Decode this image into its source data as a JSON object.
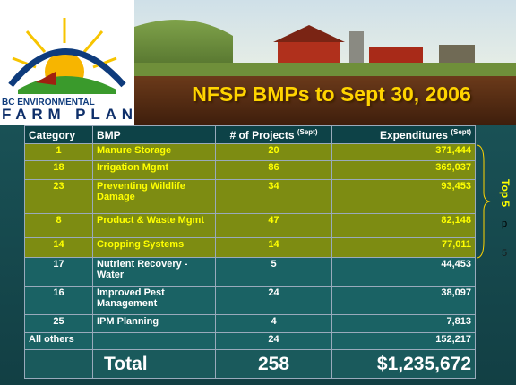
{
  "logo": {
    "line1": "BC ENVIRONMENTAL",
    "line2": "FARM PLAN"
  },
  "header": {
    "title": "NFSP BMPs to Sept 30, 2006"
  },
  "table": {
    "columns": [
      {
        "label": "Category"
      },
      {
        "label": "BMP"
      },
      {
        "label": "# of Projects",
        "note": "(Sept)"
      },
      {
        "label": "Expenditures",
        "note": "(Sept)"
      }
    ],
    "rows": [
      {
        "category": "1",
        "bmp": "Manure Storage",
        "projects": "20",
        "expenditures": "371,444",
        "highlight": true
      },
      {
        "category": "18",
        "bmp": "Irrigation Mgmt",
        "projects": "86",
        "expenditures": "369,037",
        "highlight": true
      },
      {
        "category": "23",
        "bmp": "Preventing Wildlife Damage",
        "projects": "34",
        "expenditures": "93,453",
        "highlight": true
      },
      {
        "category": "8",
        "bmp": "Product & Waste Mgmt",
        "projects": "47",
        "expenditures": "82,148",
        "highlight": true
      },
      {
        "category": "14",
        "bmp": "Cropping Systems",
        "projects": "14",
        "expenditures": "77,011",
        "highlight": true
      },
      {
        "category": "17",
        "bmp": "Nutrient Recovery - Water",
        "projects": "5",
        "expenditures": "44,453",
        "highlight": false
      },
      {
        "category": "16",
        "bmp": "Improved Pest Management",
        "projects": "24",
        "expenditures": "38,097",
        "highlight": false
      },
      {
        "category": "25",
        "bmp": "IPM Planning",
        "projects": "4",
        "expenditures": "7,813",
        "highlight": false
      },
      {
        "category": "All others",
        "projects": "24",
        "expenditures": "152,217",
        "highlight": false
      }
    ],
    "total": {
      "label": "Total",
      "projects": "258",
      "expenditures": "$1,235,672"
    }
  },
  "side_note": {
    "label": "Top 5",
    "line1": "p",
    "line2": "5"
  }
}
